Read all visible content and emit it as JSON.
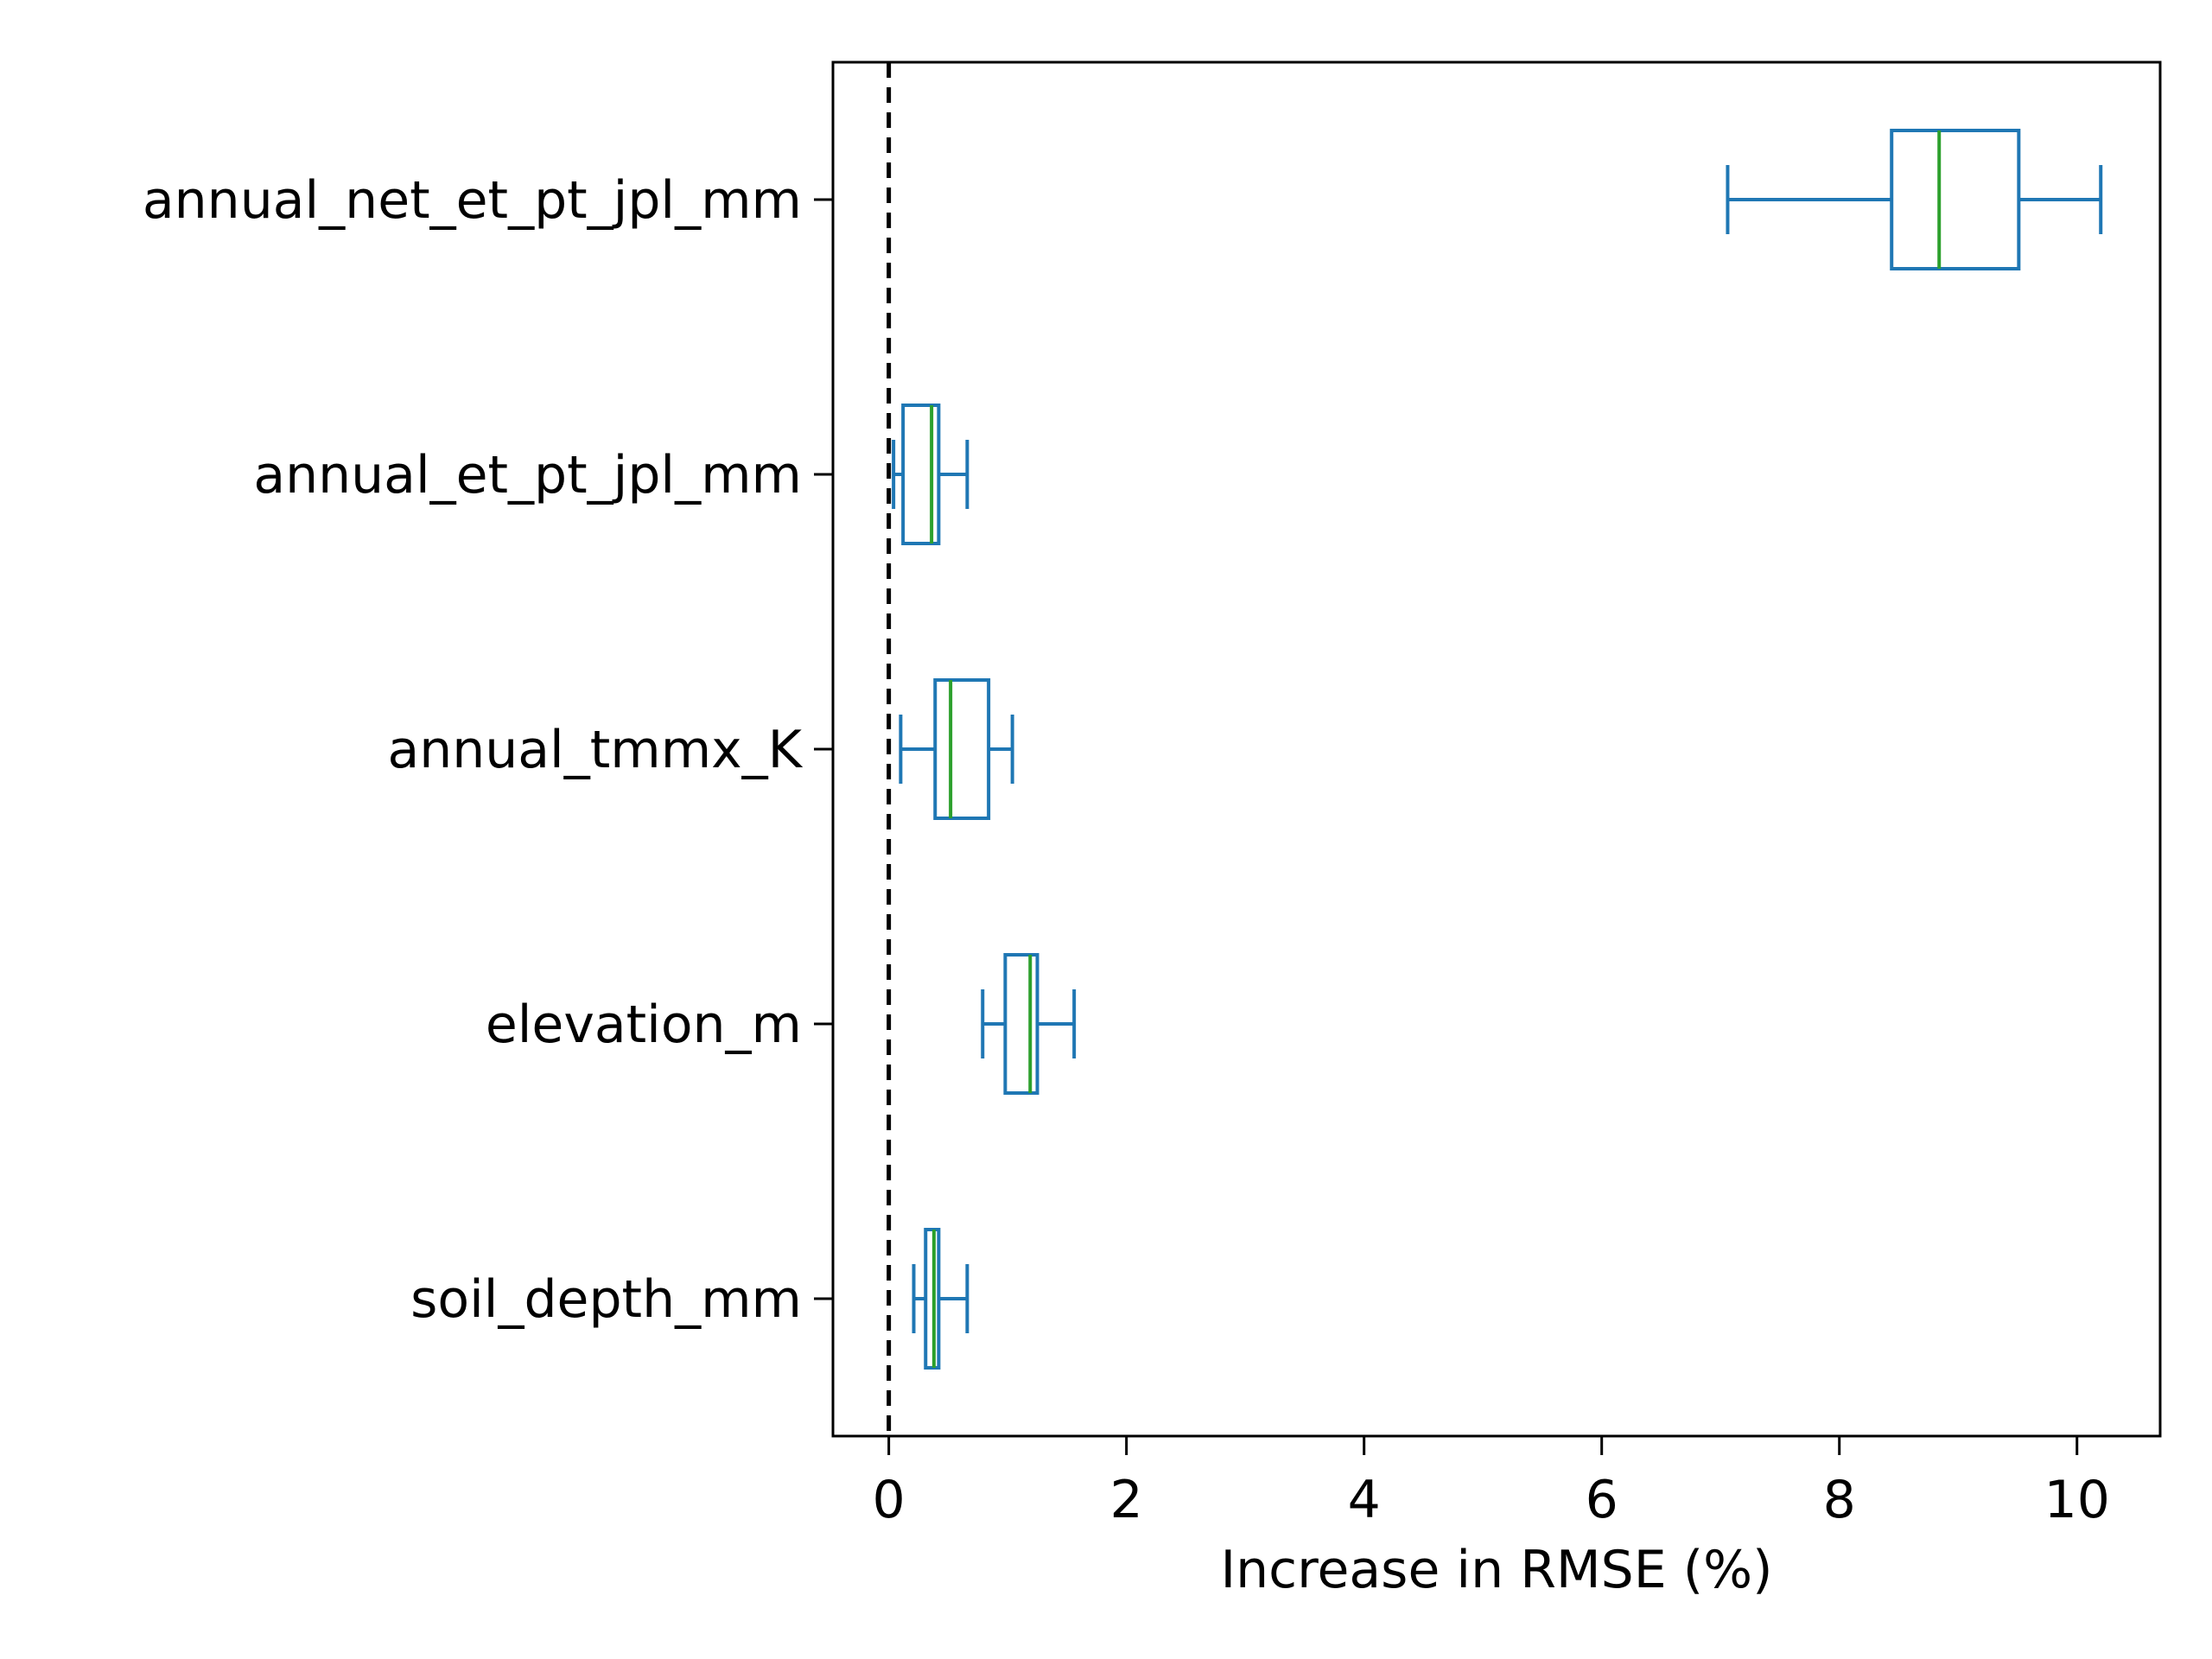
{
  "chart_data": {
    "type": "boxplot",
    "orientation": "horizontal",
    "title": "",
    "xlabel": "Increase in RMSE (%)",
    "ylabel": "",
    "xlim": [
      -0.47,
      10.7
    ],
    "xticks": [
      0,
      2,
      4,
      6,
      8,
      10
    ],
    "grid": false,
    "legend": "none",
    "reference_line": {
      "x": 0,
      "style": "dashed",
      "color": "#000000"
    },
    "colors": {
      "box": "#1f77b4",
      "median": "#2ca02c"
    },
    "series": [
      {
        "name": "annual_net_et_pt_jpl_mm",
        "whislo": 7.06,
        "q1": 8.44,
        "med": 8.84,
        "q3": 9.51,
        "whishi": 10.2
      },
      {
        "name": "annual_et_pt_jpl_mm",
        "whislo": 0.04,
        "q1": 0.12,
        "med": 0.36,
        "q3": 0.42,
        "whishi": 0.66
      },
      {
        "name": "annual_tmmx_K",
        "whislo": 0.1,
        "q1": 0.39,
        "med": 0.52,
        "q3": 0.84,
        "whishi": 1.04
      },
      {
        "name": "elevation_m",
        "whislo": 0.79,
        "q1": 0.98,
        "med": 1.19,
        "q3": 1.25,
        "whishi": 1.56
      },
      {
        "name": "soil_depth_mm",
        "whislo": 0.21,
        "q1": 0.31,
        "med": 0.38,
        "q3": 0.42,
        "whishi": 0.66
      }
    ]
  }
}
